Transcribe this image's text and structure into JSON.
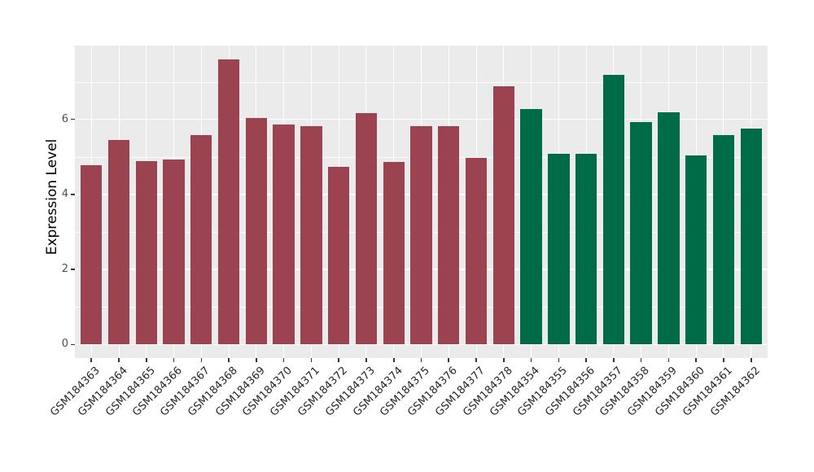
{
  "chart_data": {
    "type": "bar",
    "title": "",
    "xlabel": "",
    "ylabel": "Expression Level",
    "y_ticks": [
      0,
      2,
      4,
      6
    ],
    "y_minor_ticks": [
      1,
      3,
      5,
      7
    ],
    "ylim": [
      0,
      7.97
    ],
    "grid": "horizontal major+minor white lines, vertical major white line at each category center",
    "legend_position": "none",
    "group_colors": {
      "group1": "#9B4351",
      "group2": "#006B47"
    },
    "bars": [
      {
        "label": "GSM184363",
        "value": 4.78,
        "group": "group1"
      },
      {
        "label": "GSM184364",
        "value": 5.46,
        "group": "group1"
      },
      {
        "label": "GSM184365",
        "value": 4.89,
        "group": "group1"
      },
      {
        "label": "GSM184366",
        "value": 4.93,
        "group": "group1"
      },
      {
        "label": "GSM184367",
        "value": 5.58,
        "group": "group1"
      },
      {
        "label": "GSM184368",
        "value": 7.59,
        "group": "group1"
      },
      {
        "label": "GSM184369",
        "value": 6.03,
        "group": "group1"
      },
      {
        "label": "GSM184370",
        "value": 5.86,
        "group": "group1"
      },
      {
        "label": "GSM184371",
        "value": 5.83,
        "group": "group1"
      },
      {
        "label": "GSM184372",
        "value": 4.74,
        "group": "group1"
      },
      {
        "label": "GSM184373",
        "value": 6.16,
        "group": "group1"
      },
      {
        "label": "GSM184374",
        "value": 4.86,
        "group": "group1"
      },
      {
        "label": "GSM184375",
        "value": 5.83,
        "group": "group1"
      },
      {
        "label": "GSM184376",
        "value": 5.81,
        "group": "group1"
      },
      {
        "label": "GSM184377",
        "value": 4.97,
        "group": "group1"
      },
      {
        "label": "GSM184378",
        "value": 6.88,
        "group": "group1"
      },
      {
        "label": "GSM184354",
        "value": 6.28,
        "group": "group2"
      },
      {
        "label": "GSM184355",
        "value": 5.09,
        "group": "group2"
      },
      {
        "label": "GSM184356",
        "value": 5.09,
        "group": "group2"
      },
      {
        "label": "GSM184357",
        "value": 7.19,
        "group": "group2"
      },
      {
        "label": "GSM184358",
        "value": 5.93,
        "group": "group2"
      },
      {
        "label": "GSM184359",
        "value": 6.19,
        "group": "group2"
      },
      {
        "label": "GSM184360",
        "value": 5.03,
        "group": "group2"
      },
      {
        "label": "GSM184361",
        "value": 5.58,
        "group": "group2"
      },
      {
        "label": "GSM184362",
        "value": 5.76,
        "group": "group2"
      }
    ]
  },
  "panel_style": {
    "background": "#EBEBEB",
    "gridline_color": "#FFFFFF",
    "tick_color": "#333333",
    "axis_text_color": "#4D4D4D",
    "axis_title_color": "#000000"
  }
}
